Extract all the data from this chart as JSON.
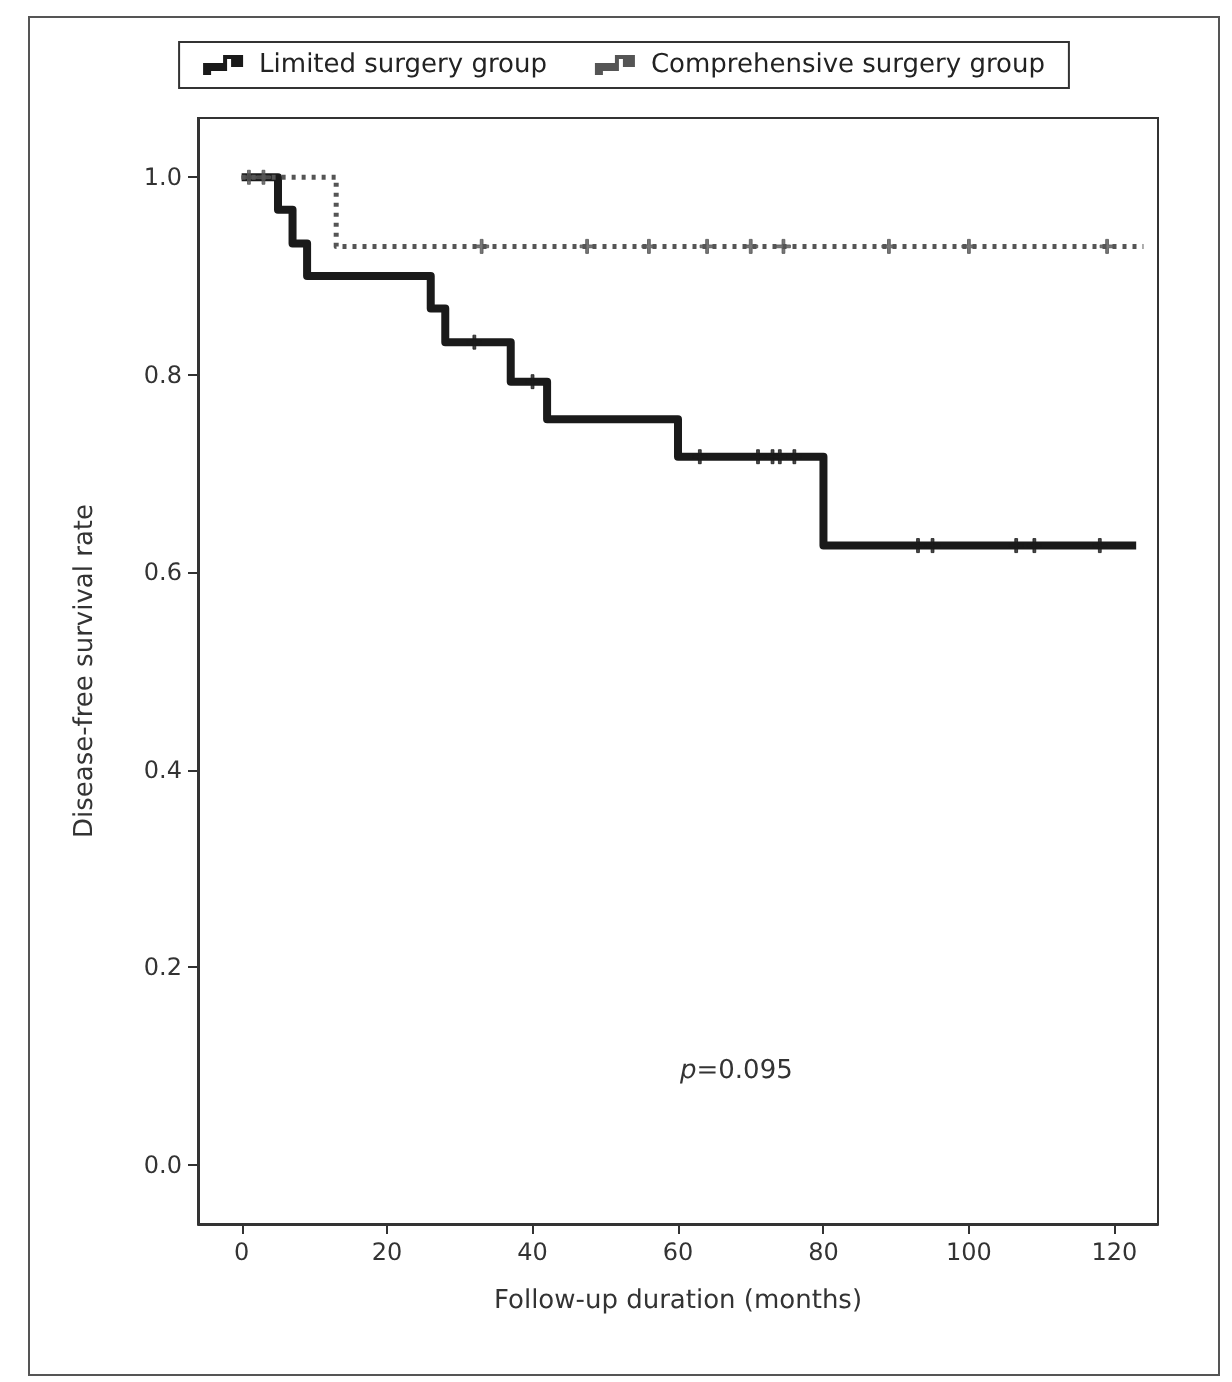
{
  "chart_data": {
    "type": "step",
    "xlabel": "Follow-up duration (months)",
    "ylabel": "Disease-free survival rate",
    "xlim": [
      -6,
      126
    ],
    "xticks": [
      0,
      20,
      40,
      60,
      80,
      100,
      120
    ],
    "ylim": [
      -0.06,
      1.06
    ],
    "yticks": [
      {
        "value": 0,
        "label": "0.0"
      },
      {
        "value": 0.2,
        "label": "0.2"
      },
      {
        "value": 0.4,
        "label": "0.4"
      },
      {
        "value": 0.6,
        "label": "0.6"
      },
      {
        "value": 0.8,
        "label": "0.8"
      },
      {
        "value": 1,
        "label": "1.0"
      }
    ],
    "legend": "top",
    "grid": false,
    "marker": "none",
    "annotations": [
      "p=0.095"
    ],
    "series": [
      {
        "name": "Limited surgery group",
        "color": "#1a1a1a",
        "line_style": "solid",
        "x": [
          0,
          5,
          7,
          9,
          26,
          28,
          37,
          42,
          60,
          80,
          123
        ],
        "values": [
          1,
          0.967,
          0.933,
          0.9,
          0.867,
          0.833,
          0.793,
          0.755,
          0.717,
          0.627,
          0.627
        ]
      },
      {
        "name": "Comprehensive surgery group",
        "color": "#555555",
        "line_style": "dotted",
        "x": [
          0,
          13,
          124
        ],
        "values": [
          1,
          0.93,
          0.93
        ]
      },
      {
        "type": "scatter",
        "marker": "cross",
        "color": "#1a1a1a",
        "x": [
          32,
          40,
          63,
          71,
          73,
          74,
          76,
          93,
          95,
          106.5,
          109,
          118
        ],
        "values": [
          0.833,
          0.793,
          0.717,
          0.717,
          0.717,
          0.717,
          0.717,
          0.627,
          0.627,
          0.627,
          0.627,
          0.627
        ]
      },
      {
        "type": "scatter",
        "marker": "cross",
        "color": "#555555",
        "x": [
          1,
          3,
          33,
          47.5,
          56,
          64,
          70,
          74.5,
          89,
          100,
          119
        ],
        "values": [
          1,
          1,
          0.93,
          0.93,
          0.93,
          0.93,
          0.93,
          0.93,
          0.93,
          0.93,
          0.93
        ]
      }
    ]
  }
}
